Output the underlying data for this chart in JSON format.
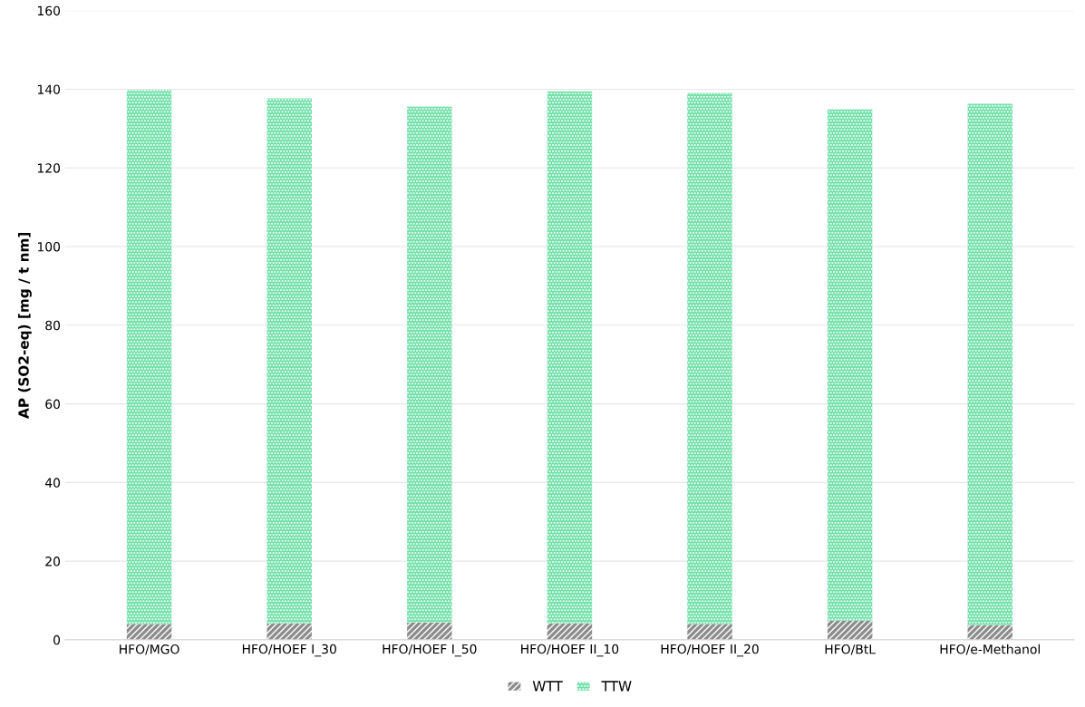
{
  "chart_data": {
    "type": "bar",
    "stacked": true,
    "ylabel": "AP (SO2-eq) [mg / t nm]",
    "categories": [
      "HFO/MGO",
      "HFO/HOEF I_30",
      "HFO/HOEF I_50",
      "HFO/HOEF II_10",
      "HFO/HOEF II_20",
      "HFO/BtL",
      "HFO/e-Methanol"
    ],
    "series": [
      {
        "name": "WTT",
        "color": "#8c8c8c",
        "values": [
          4.0,
          4.2,
          4.4,
          4.2,
          4.0,
          4.9,
          3.8
        ]
      },
      {
        "name": "TTW",
        "color": "#6fe0a8",
        "values": [
          135.8,
          133.5,
          131.2,
          135.3,
          135.1,
          130.0,
          132.5
        ]
      }
    ],
    "ylim": [
      0,
      160
    ],
    "yticks": [
      0,
      20,
      40,
      60,
      80,
      100,
      120,
      140,
      160
    ],
    "grid": "y",
    "legend": "bottom"
  }
}
